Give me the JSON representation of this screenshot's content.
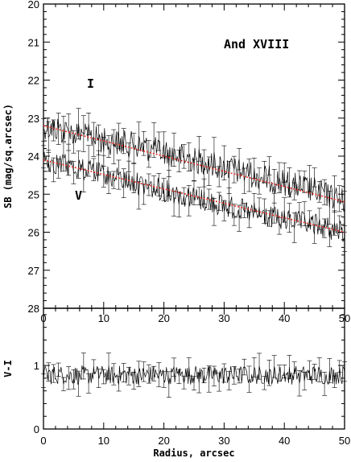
{
  "chart_data": [
    {
      "type": "line",
      "title": "And XVIII",
      "xlabel": "",
      "ylabel": "SB (mag/sq.arcsec)",
      "xlim": [
        0,
        50
      ],
      "ylim": [
        28,
        20
      ],
      "y_inverted": true,
      "xticks": [
        "0",
        "10",
        "20",
        "30",
        "40",
        "50"
      ],
      "yticks": [
        "20",
        "21",
        "22",
        "23",
        "24",
        "25",
        "26",
        "27",
        "28"
      ],
      "series": [
        {
          "name": "I",
          "x": [
            0,
            5,
            10,
            15,
            20,
            25,
            30,
            35,
            40,
            45,
            50
          ],
          "y": [
            23.2,
            23.4,
            23.6,
            23.7,
            23.9,
            24.1,
            24.3,
            24.5,
            24.7,
            24.9,
            25.2
          ],
          "noise": 0.35,
          "fit": {
            "x": [
              0,
              50
            ],
            "y": [
              23.2,
              25.2
            ]
          }
        },
        {
          "name": "V",
          "x": [
            0,
            5,
            10,
            15,
            20,
            25,
            30,
            35,
            40,
            45,
            50
          ],
          "y": [
            24.1,
            24.3,
            24.5,
            24.7,
            24.9,
            25.1,
            25.3,
            25.5,
            25.7,
            25.8,
            26.0
          ],
          "noise": 0.3,
          "fit": {
            "x": [
              0,
              50
            ],
            "y": [
              24.1,
              26.0
            ]
          }
        }
      ]
    },
    {
      "type": "line",
      "xlabel": "Radius, arcsec",
      "ylabel": "V-I",
      "xlim": [
        0,
        50
      ],
      "ylim": [
        0,
        1.9
      ],
      "xticks": [
        "0",
        "10",
        "20",
        "30",
        "40",
        "50"
      ],
      "yticks": [
        "0",
        "1"
      ],
      "series": [
        {
          "x": [
            0,
            5,
            10,
            15,
            20,
            25,
            30,
            35,
            40,
            45,
            50
          ],
          "y": [
            0.85,
            0.85,
            0.85,
            0.85,
            0.85,
            0.85,
            0.85,
            0.85,
            0.85,
            0.85,
            0.85
          ],
          "noise": 0.15
        }
      ]
    }
  ]
}
